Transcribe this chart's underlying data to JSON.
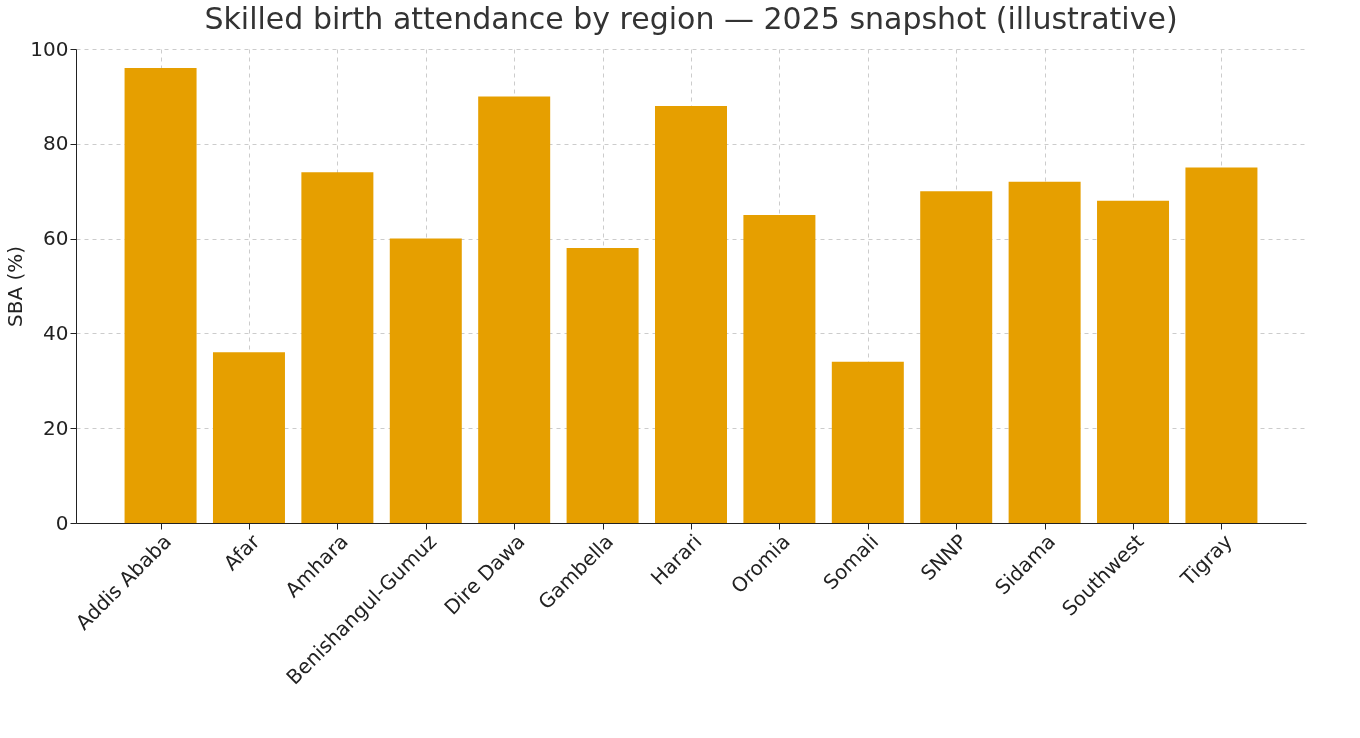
{
  "chart_data": {
    "type": "bar",
    "title": "Skilled birth attendance by region — 2025 snapshot (illustrative)",
    "ylabel": "SBA (%)",
    "categories": [
      "Addis Ababa",
      "Afar",
      "Amhara",
      "Benishangul-Gumuz",
      "Dire Dawa",
      "Gambella",
      "Harari",
      "Oromia",
      "Somali",
      "SNNP",
      "Sidama",
      "Southwest",
      "Tigray"
    ],
    "values": [
      96,
      36,
      74,
      60,
      90,
      58,
      88,
      65,
      34,
      70,
      72,
      68,
      75
    ],
    "color": "#e69f00",
    "ylim": [
      0,
      100
    ],
    "yticks": [
      0,
      20,
      40,
      60,
      80,
      100
    ],
    "grid": true
  }
}
